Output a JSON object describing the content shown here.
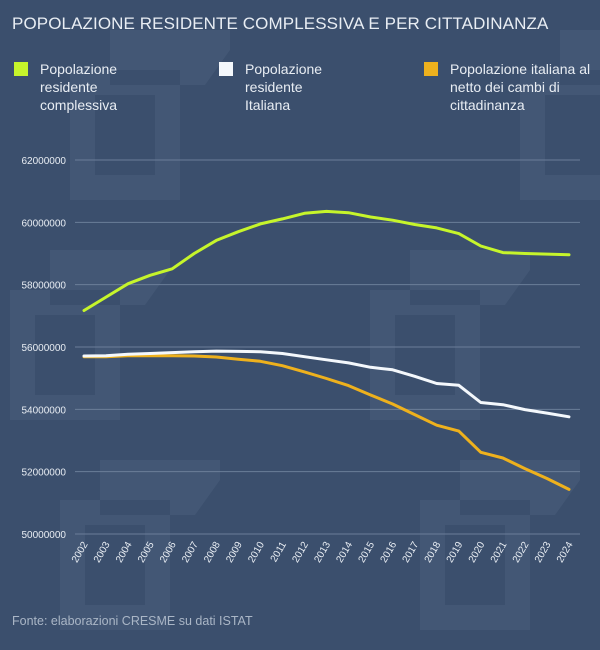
{
  "chart_data": {
    "type": "line",
    "title": "POPOLAZIONE RESIDENTE COMPLESSIVA E PER CITTADINANZA",
    "source": "Fonte: elaborazioni CRESME su dati ISTAT",
    "x": [
      "2002",
      "2003",
      "2004",
      "2005",
      "2006",
      "2007",
      "2008",
      "2009",
      "2010",
      "2011",
      "2012",
      "2013",
      "2014",
      "2015",
      "2016",
      "2017",
      "2018",
      "2019",
      "2020",
      "2021",
      "2022",
      "2023",
      "2024"
    ],
    "ylim": [
      50000000,
      62000000
    ],
    "yticks": [
      "50000000",
      "52000000",
      "54000000",
      "56000000",
      "58000000",
      "60000000",
      "62000000"
    ],
    "grid": true,
    "legend_placement": "top",
    "series": [
      {
        "name": "Popolazione residente complessiva",
        "color": "#c6f52b",
        "values": [
          57170000,
          57600000,
          58030000,
          58300000,
          58510000,
          59000000,
          59420000,
          59700000,
          59950000,
          60110000,
          60290000,
          60350000,
          60310000,
          60170000,
          60070000,
          59930000,
          59820000,
          59640000,
          59240000,
          59030000,
          59000000,
          58980000,
          58960000
        ]
      },
      {
        "name": "Popolazione residente Italiana",
        "color": "#f4f8fc",
        "values": [
          55710000,
          55720000,
          55770000,
          55790000,
          55820000,
          55850000,
          55870000,
          55860000,
          55850000,
          55790000,
          55690000,
          55590000,
          55490000,
          55350000,
          55270000,
          55060000,
          54830000,
          54770000,
          54220000,
          54150000,
          53990000,
          53880000,
          53760000
        ]
      },
      {
        "name": "Popolazione italiana al netto dei cambi di cittadinanza",
        "color": "#eeb11d",
        "values": [
          55690000,
          55690000,
          55720000,
          55720000,
          55720000,
          55710000,
          55680000,
          55610000,
          55540000,
          55400000,
          55200000,
          54990000,
          54760000,
          54460000,
          54170000,
          53830000,
          53490000,
          53300000,
          52620000,
          52440000,
          52100000,
          51780000,
          51430000
        ]
      }
    ]
  }
}
